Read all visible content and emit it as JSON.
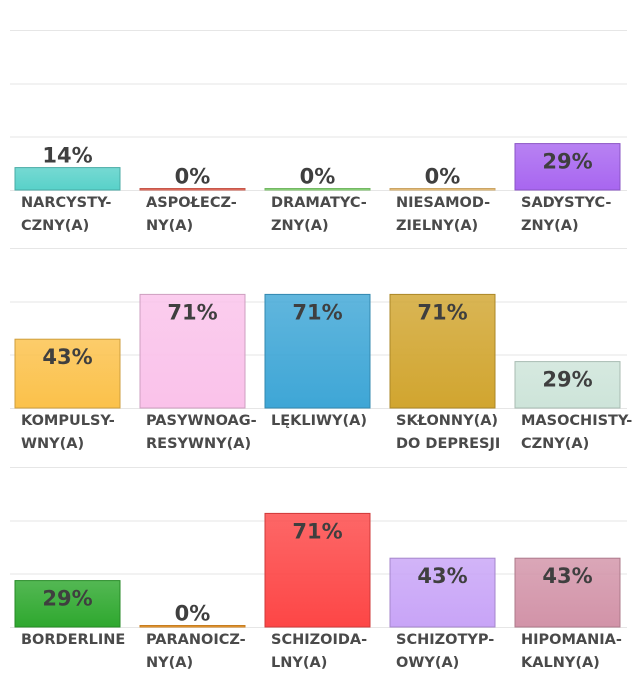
{
  "chart_data": [
    {
      "type": "bar",
      "ylim": [
        0,
        100
      ],
      "grid": true,
      "categories": [
        {
          "label": [
            "NARCYSTY-",
            "CZNY(A)"
          ],
          "value": 14,
          "value_label": "14%",
          "color": "#58d1c9"
        },
        {
          "label": [
            "ASPOŁECZ-",
            "NY(A)"
          ],
          "value": 0,
          "value_label": "0%",
          "color": "#f26b5b"
        },
        {
          "label": [
            "DRAMATYC-",
            "ZNY(A)"
          ],
          "value": 0,
          "value_label": "0%",
          "color": "#8ee07a"
        },
        {
          "label": [
            "NIESAMOD-",
            "ZIELNY(A)"
          ],
          "value": 0,
          "value_label": "0%",
          "color": "#f7c97c"
        },
        {
          "label": [
            "SADYSTYC-",
            "ZNY(A)"
          ],
          "value": 29,
          "value_label": "29%",
          "color": "#a866f0"
        }
      ]
    },
    {
      "type": "bar",
      "ylim": [
        0,
        100
      ],
      "grid": true,
      "categories": [
        {
          "label": [
            "KOMPULSY-",
            "WNY(A)"
          ],
          "value": 43,
          "value_label": "43%",
          "color": "#fbc14a"
        },
        {
          "label": [
            "PASYWNOAG-",
            "RESYWNY(A)"
          ],
          "value": 71,
          "value_label": "71%",
          "color": "#fac2ea"
        },
        {
          "label": [
            "LĘKLIWY(A)"
          ],
          "value": 71,
          "value_label": "71%",
          "color": "#3ea6d6"
        },
        {
          "label": [
            "SKŁONNY(A)",
            "DO DEPRESJI"
          ],
          "value": 71,
          "value_label": "71%",
          "color": "#d1a52f"
        },
        {
          "label": [
            "MASOCHISTY-",
            "CZNY(A)"
          ],
          "value": 29,
          "value_label": "29%",
          "color": "#cde4d9"
        }
      ]
    },
    {
      "type": "bar",
      "ylim": [
        0,
        100
      ],
      "grid": true,
      "categories": [
        {
          "label": [
            "BORDERLINE"
          ],
          "value": 29,
          "value_label": "29%",
          "color": "#2ea82e"
        },
        {
          "label": [
            "PARANOICZ-",
            "NY(A)"
          ],
          "value": 0,
          "value_label": "0%",
          "color": "#f39a27"
        },
        {
          "label": [
            "SCHIZOIDA-",
            "LNY(A)"
          ],
          "value": 71,
          "value_label": "71%",
          "color": "#fd4646"
        },
        {
          "label": [
            "SCHIZOTYP-",
            "OWY(A)"
          ],
          "value": 43,
          "value_label": "43%",
          "color": "#c8a4f7"
        },
        {
          "label": [
            "HIPOMANIA-",
            "KALNY(A)"
          ],
          "value": 43,
          "value_label": "43%",
          "color": "#d293a8"
        }
      ]
    }
  ]
}
